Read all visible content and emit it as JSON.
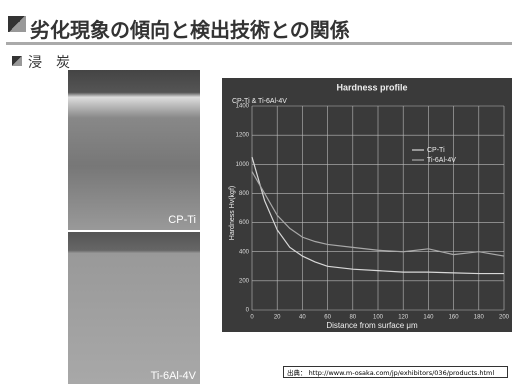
{
  "header": {
    "title": "劣化現象の傾向と検出技術との関係"
  },
  "section": {
    "label": "浸　炭"
  },
  "images": [
    {
      "label": "CP-Ti"
    },
    {
      "label": "Ti-6Al-4V"
    }
  ],
  "source": {
    "text": "出典：  http://www.m-osaka.com/jp/exhibitors/036/products.html"
  },
  "chart_data": {
    "type": "line",
    "title": "Hardness profile",
    "subtitle": "CP-Ti & Ti-6Al-4V",
    "x_label": "Distance from surface μm",
    "y_label": "Hardness Hv(kgf)",
    "x": [
      0,
      10,
      20,
      30,
      40,
      50,
      60,
      80,
      100,
      120,
      140,
      160,
      180,
      200
    ],
    "series": [
      {
        "name": "CP-Ti",
        "color": "#d8d8d8",
        "values": [
          1050,
          750,
          550,
          430,
          370,
          330,
          300,
          280,
          270,
          260,
          260,
          255,
          250,
          250
        ]
      },
      {
        "name": "Ti-6Al-4V",
        "color": "#a8a8a8",
        "values": [
          950,
          800,
          650,
          560,
          500,
          470,
          450,
          430,
          410,
          400,
          420,
          380,
          400,
          370
        ]
      }
    ],
    "xlim": [
      0,
      200
    ],
    "ylim": [
      0,
      1400
    ],
    "xticks": [
      0,
      20,
      40,
      60,
      80,
      100,
      120,
      140,
      160,
      180,
      200
    ],
    "yticks": [
      0,
      200,
      400,
      600,
      800,
      1000,
      1200,
      1400
    ],
    "grid": true
  }
}
